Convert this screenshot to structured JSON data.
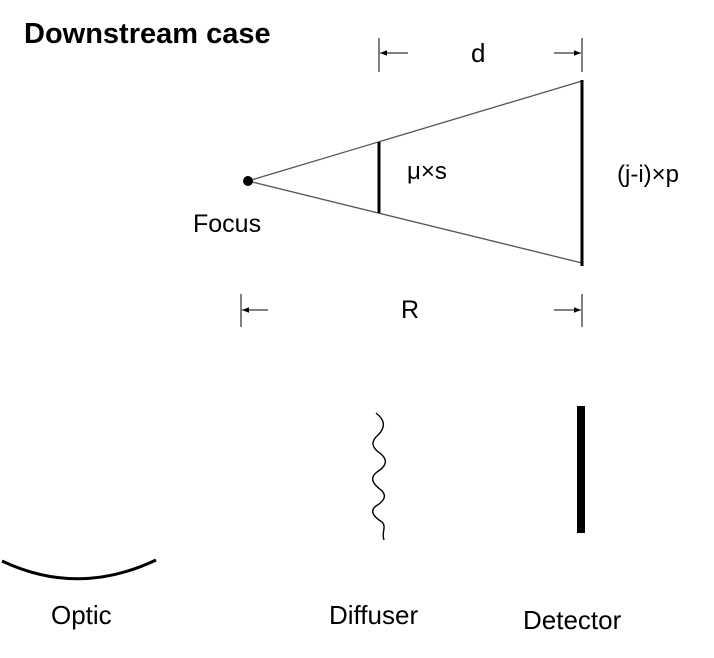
{
  "title": "Downstream case",
  "geometry_labels": {
    "d": "d",
    "mu_s": "μ×s",
    "j_i_p": "(j-i)×p",
    "focus": "Focus",
    "r": "R"
  },
  "components": {
    "optic": "Optic",
    "diffuser": "Diffuser",
    "detector": "Detector"
  }
}
